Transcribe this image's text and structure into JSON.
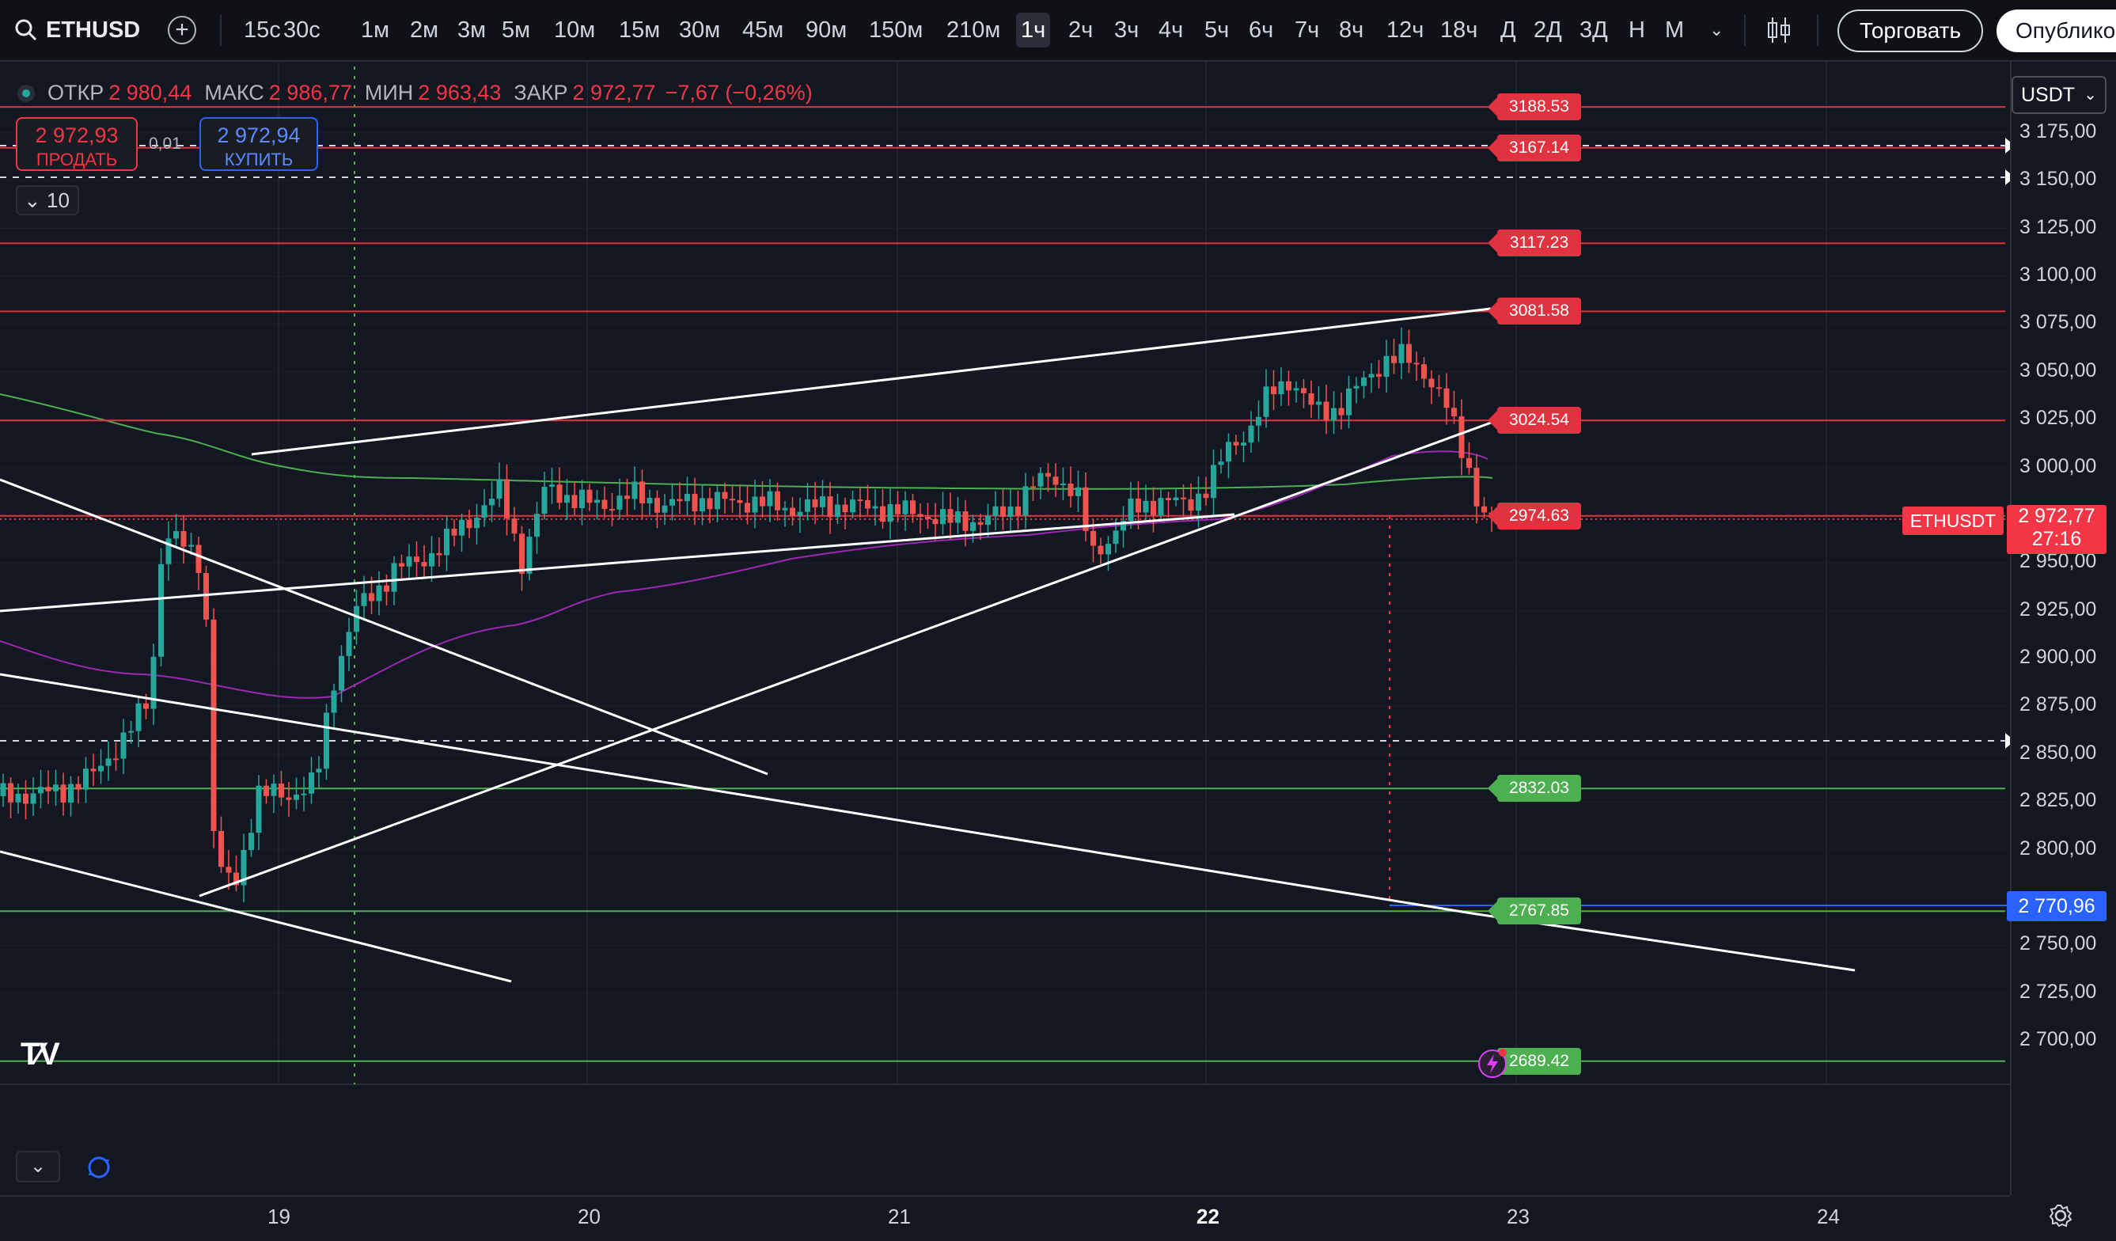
{
  "toolbar": {
    "symbol": "ETHUSD",
    "timeframes": [
      "15с",
      "30с",
      "1м",
      "2м",
      "3м",
      "5м",
      "10м",
      "15м",
      "30м",
      "45м",
      "90м",
      "150м",
      "210м",
      "1ч",
      "2ч",
      "3ч",
      "4ч",
      "5ч",
      "6ч",
      "7ч",
      "8ч",
      "12ч",
      "18ч",
      "Д",
      "2Д",
      "3Д",
      "Н",
      "М"
    ],
    "active_timeframe": "1ч",
    "trade_label": "Торговать",
    "publish_label": "Опубликовать"
  },
  "legend": {
    "open_label": "ОТКР",
    "open": "2 980,44",
    "high_label": "МАКС",
    "high": "2 986,77",
    "low_label": "МИН",
    "low": "2 963,43",
    "close_label": "ЗАКР",
    "close": "2 972,77",
    "change": "−7,67 (−0,26%)"
  },
  "order": {
    "sell_price": "2 972,93",
    "sell_label": "ПРОДАТЬ",
    "spread": "0,01",
    "buy_price": "2 972,94",
    "buy_label": "КУПИТЬ",
    "quantity": "10"
  },
  "currency": "USDT",
  "price_axis": [
    "3 175,00",
    "3 150,00",
    "3 125,00",
    "3 100,00",
    "3 075,00",
    "3 050,00",
    "3 025,00",
    "3 000,00",
    "2 950,00",
    "2 925,00",
    "2 900,00",
    "2 875,00",
    "2 850,00",
    "2 825,00",
    "2 800,00",
    "2 750,00",
    "2 725,00",
    "2 700,00"
  ],
  "price_axis_values": [
    3175,
    3150,
    3125,
    3100,
    3075,
    3050,
    3025,
    3000,
    2950,
    2925,
    2900,
    2875,
    2850,
    2825,
    2800,
    2750,
    2725,
    2700
  ],
  "horizontal_levels": [
    {
      "price": "3188.53",
      "value": 3188.53,
      "color": "red"
    },
    {
      "price": "3167.14",
      "value": 3167.14,
      "color": "red"
    },
    {
      "price": "3117.23",
      "value": 3117.23,
      "color": "red"
    },
    {
      "price": "3081.58",
      "value": 3081.58,
      "color": "red"
    },
    {
      "price": "3024.54",
      "value": 3024.54,
      "color": "red"
    },
    {
      "price": "2974.63",
      "value": 2974.63,
      "color": "red"
    },
    {
      "price": "2832.03",
      "value": 2832.03,
      "color": "green"
    },
    {
      "price": "2767.85",
      "value": 2767.85,
      "color": "green"
    },
    {
      "price": "2689.42",
      "value": 2689.42,
      "color": "green"
    }
  ],
  "last_price": {
    "symbol": "ETHUSDT",
    "price": "2 972,77",
    "countdown": "27:16"
  },
  "crosshair_price": "2 770,96",
  "date_axis": [
    "19",
    "20",
    "21",
    "22",
    "23",
    "24"
  ],
  "bold_date": "22"
}
